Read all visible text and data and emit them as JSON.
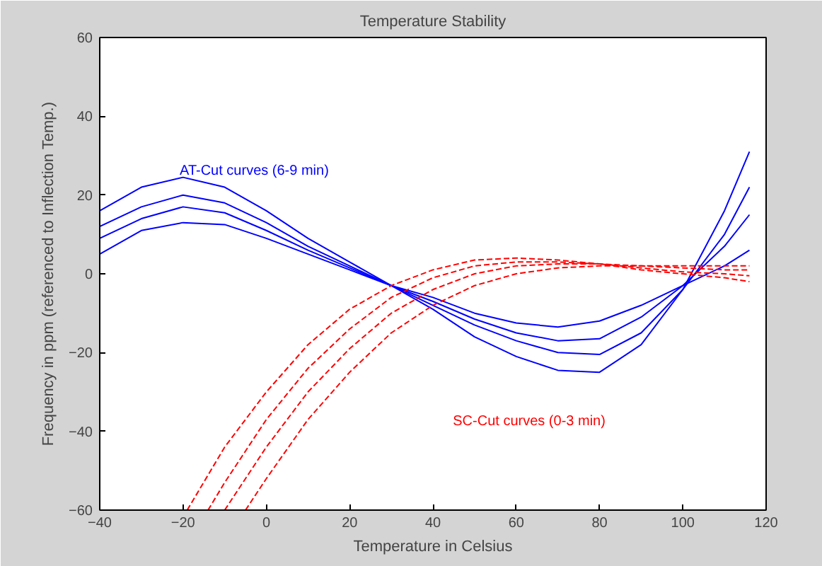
{
  "chart_data": {
    "type": "line",
    "title": "Temperature Stability",
    "xlabel": "Temperature in Celsius",
    "ylabel": "Frequency in ppm (referenced to Inflection Temp.)",
    "xlim": [
      -40,
      120
    ],
    "ylim": [
      -60,
      60
    ],
    "xticks": [
      -40,
      -20,
      0,
      20,
      40,
      60,
      80,
      100,
      120
    ],
    "yticks": [
      -60,
      -40,
      -20,
      0,
      20,
      40,
      60
    ],
    "grid": false,
    "marker": "none",
    "series": [
      {
        "color": "#0000ff",
        "line_style": "solid",
        "x": [
          -40,
          -30,
          -20,
          -10,
          0,
          10,
          20,
          30,
          40,
          50,
          60,
          70,
          80,
          90,
          100,
          110,
          116
        ],
        "values": [
          16,
          22,
          24.5,
          22,
          16,
          9,
          3,
          -3,
          -9,
          -16,
          -21,
          -24.5,
          -25,
          -18,
          -4,
          16,
          31
        ]
      },
      {
        "color": "#0000ff",
        "line_style": "solid",
        "x": [
          -40,
          -30,
          -20,
          -10,
          0,
          10,
          20,
          30,
          40,
          50,
          60,
          70,
          80,
          90,
          100,
          110,
          116
        ],
        "values": [
          12,
          17,
          20,
          18,
          13,
          7,
          2,
          -3,
          -8,
          -13,
          -17,
          -20,
          -20.5,
          -15,
          -4,
          10,
          22
        ]
      },
      {
        "color": "#0000ff",
        "line_style": "solid",
        "x": [
          -40,
          -30,
          -20,
          -10,
          0,
          10,
          20,
          30,
          40,
          50,
          60,
          70,
          80,
          90,
          100,
          110,
          116
        ],
        "values": [
          9,
          14,
          17,
          15.5,
          11,
          6,
          1.5,
          -3,
          -7,
          -11.5,
          -15,
          -17,
          -16.5,
          -11,
          -3,
          7,
          15
        ]
      },
      {
        "color": "#0000ff",
        "line_style": "solid",
        "x": [
          -40,
          -30,
          -20,
          -10,
          0,
          10,
          20,
          30,
          40,
          50,
          60,
          70,
          80,
          90,
          100,
          110,
          116
        ],
        "values": [
          5,
          11,
          13,
          12.5,
          9,
          5,
          1,
          -3,
          -6,
          -10,
          -12.5,
          -13.5,
          -12,
          -8,
          -3,
          2,
          6
        ]
      },
      {
        "color": "#ff0000",
        "line_style": "dashed",
        "x": [
          -19,
          -10,
          0,
          10,
          20,
          30,
          40,
          50,
          60,
          70,
          80,
          90,
          100,
          110,
          116
        ],
        "values": [
          -60,
          -44,
          -30,
          -18,
          -9,
          -3,
          1,
          3.5,
          4,
          3.5,
          2.5,
          1,
          0,
          -1,
          -2
        ]
      },
      {
        "color": "#ff0000",
        "line_style": "dashed",
        "x": [
          -14,
          -10,
          0,
          10,
          20,
          30,
          40,
          50,
          60,
          70,
          80,
          90,
          100,
          110,
          116
        ],
        "values": [
          -60,
          -53,
          -37,
          -24,
          -14,
          -6,
          -1,
          2,
          3,
          3,
          2.5,
          1.5,
          0.5,
          0,
          -0.5
        ]
      },
      {
        "color": "#ff0000",
        "line_style": "dashed",
        "x": [
          -10,
          0,
          10,
          20,
          30,
          40,
          50,
          60,
          70,
          80,
          90,
          100,
          110,
          116
        ],
        "values": [
          -60,
          -44,
          -30,
          -19,
          -10,
          -4,
          0,
          2,
          2.5,
          2.5,
          2,
          1.5,
          1,
          1
        ]
      },
      {
        "color": "#ff0000",
        "line_style": "dashed",
        "x": [
          -5,
          0,
          10,
          20,
          30,
          40,
          50,
          60,
          70,
          80,
          90,
          100,
          110,
          116
        ],
        "values": [
          -60,
          -52,
          -37,
          -25,
          -15,
          -8,
          -3,
          0,
          1.5,
          2,
          2,
          2,
          2,
          2
        ]
      }
    ],
    "annotations": [
      "AT-Cut curves (6-9 min)",
      "SC-Cut curves (0-3 min)"
    ]
  }
}
